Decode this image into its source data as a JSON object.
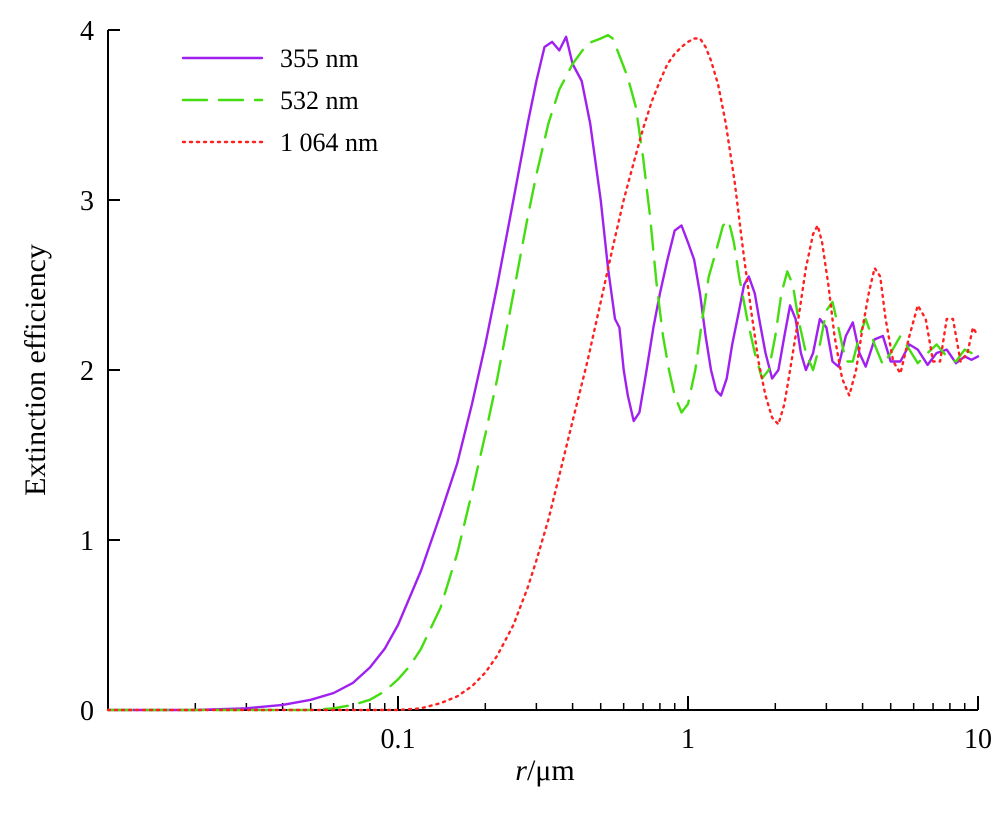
{
  "chart_data": {
    "type": "line",
    "title": "",
    "xlabel_italic": "r",
    "xlabel_rest": "/μm",
    "ylabel": "Extinction efficiency",
    "x_scale": "log",
    "xlim": [
      0.01,
      10
    ],
    "ylim": [
      0,
      4
    ],
    "x_ticks": [
      0.1,
      1,
      10
    ],
    "x_tick_labels": [
      "0.1",
      "1",
      "10"
    ],
    "y_ticks": [
      0,
      1,
      2,
      3,
      4
    ],
    "y_tick_labels": [
      "0",
      "1",
      "2",
      "3",
      "4"
    ],
    "grid": false,
    "legend_position": "top-left",
    "series": [
      {
        "name": "355 nm",
        "color": "#a020f0",
        "style": "solid",
        "points": [
          [
            0.01,
            0.0
          ],
          [
            0.02,
            0.0
          ],
          [
            0.03,
            0.01
          ],
          [
            0.04,
            0.03
          ],
          [
            0.05,
            0.06
          ],
          [
            0.06,
            0.1
          ],
          [
            0.07,
            0.16
          ],
          [
            0.08,
            0.25
          ],
          [
            0.09,
            0.36
          ],
          [
            0.1,
            0.5
          ],
          [
            0.12,
            0.82
          ],
          [
            0.14,
            1.15
          ],
          [
            0.16,
            1.45
          ],
          [
            0.18,
            1.8
          ],
          [
            0.2,
            2.15
          ],
          [
            0.22,
            2.5
          ],
          [
            0.25,
            3.0
          ],
          [
            0.28,
            3.45
          ],
          [
            0.3,
            3.7
          ],
          [
            0.32,
            3.9
          ],
          [
            0.34,
            3.93
          ],
          [
            0.36,
            3.88
          ],
          [
            0.38,
            3.96
          ],
          [
            0.4,
            3.8
          ],
          [
            0.43,
            3.7
          ],
          [
            0.46,
            3.45
          ],
          [
            0.5,
            3.0
          ],
          [
            0.53,
            2.6
          ],
          [
            0.56,
            2.3
          ],
          [
            0.58,
            2.25
          ],
          [
            0.6,
            2.0
          ],
          [
            0.62,
            1.85
          ],
          [
            0.65,
            1.7
          ],
          [
            0.68,
            1.75
          ],
          [
            0.72,
            2.0
          ],
          [
            0.76,
            2.25
          ],
          [
            0.8,
            2.45
          ],
          [
            0.85,
            2.65
          ],
          [
            0.9,
            2.82
          ],
          [
            0.95,
            2.85
          ],
          [
            1.0,
            2.75
          ],
          [
            1.05,
            2.65
          ],
          [
            1.1,
            2.45
          ],
          [
            1.15,
            2.2
          ],
          [
            1.2,
            2.0
          ],
          [
            1.25,
            1.88
          ],
          [
            1.3,
            1.85
          ],
          [
            1.36,
            1.95
          ],
          [
            1.42,
            2.15
          ],
          [
            1.5,
            2.35
          ],
          [
            1.56,
            2.5
          ],
          [
            1.62,
            2.55
          ],
          [
            1.7,
            2.45
          ],
          [
            1.76,
            2.3
          ],
          [
            1.85,
            2.1
          ],
          [
            1.95,
            1.95
          ],
          [
            2.05,
            2.0
          ],
          [
            2.15,
            2.2
          ],
          [
            2.25,
            2.38
          ],
          [
            2.35,
            2.3
          ],
          [
            2.45,
            2.1
          ],
          [
            2.55,
            2.0
          ],
          [
            2.7,
            2.1
          ],
          [
            2.85,
            2.3
          ],
          [
            3.0,
            2.25
          ],
          [
            3.15,
            2.05
          ],
          [
            3.3,
            2.02
          ],
          [
            3.5,
            2.2
          ],
          [
            3.7,
            2.28
          ],
          [
            3.9,
            2.1
          ],
          [
            4.1,
            2.02
          ],
          [
            4.4,
            2.18
          ],
          [
            4.7,
            2.2
          ],
          [
            5.0,
            2.05
          ],
          [
            5.4,
            2.05
          ],
          [
            5.8,
            2.15
          ],
          [
            6.2,
            2.12
          ],
          [
            6.7,
            2.03
          ],
          [
            7.2,
            2.1
          ],
          [
            7.8,
            2.12
          ],
          [
            8.4,
            2.04
          ],
          [
            9.0,
            2.08
          ],
          [
            9.5,
            2.06
          ],
          [
            10.0,
            2.08
          ]
        ]
      },
      {
        "name": "532 nm",
        "color": "#44dd10",
        "style": "dashed",
        "points": [
          [
            0.01,
            0.0
          ],
          [
            0.03,
            0.0
          ],
          [
            0.05,
            0.0
          ],
          [
            0.06,
            0.01
          ],
          [
            0.07,
            0.03
          ],
          [
            0.08,
            0.06
          ],
          [
            0.09,
            0.11
          ],
          [
            0.1,
            0.18
          ],
          [
            0.11,
            0.26
          ],
          [
            0.12,
            0.36
          ],
          [
            0.14,
            0.6
          ],
          [
            0.16,
            0.92
          ],
          [
            0.18,
            1.28
          ],
          [
            0.2,
            1.62
          ],
          [
            0.22,
            1.95
          ],
          [
            0.25,
            2.45
          ],
          [
            0.28,
            2.9
          ],
          [
            0.3,
            3.15
          ],
          [
            0.33,
            3.45
          ],
          [
            0.36,
            3.65
          ],
          [
            0.4,
            3.8
          ],
          [
            0.45,
            3.92
          ],
          [
            0.5,
            3.95
          ],
          [
            0.53,
            3.97
          ],
          [
            0.55,
            3.95
          ],
          [
            0.58,
            3.85
          ],
          [
            0.62,
            3.72
          ],
          [
            0.66,
            3.55
          ],
          [
            0.7,
            3.25
          ],
          [
            0.74,
            2.9
          ],
          [
            0.78,
            2.5
          ],
          [
            0.82,
            2.2
          ],
          [
            0.86,
            2.0
          ],
          [
            0.9,
            1.85
          ],
          [
            0.95,
            1.75
          ],
          [
            1.0,
            1.8
          ],
          [
            1.06,
            2.0
          ],
          [
            1.12,
            2.3
          ],
          [
            1.18,
            2.55
          ],
          [
            1.25,
            2.7
          ],
          [
            1.32,
            2.85
          ],
          [
            1.38,
            2.88
          ],
          [
            1.44,
            2.75
          ],
          [
            1.5,
            2.55
          ],
          [
            1.6,
            2.3
          ],
          [
            1.7,
            2.1
          ],
          [
            1.8,
            1.95
          ],
          [
            1.9,
            2.0
          ],
          [
            2.0,
            2.2
          ],
          [
            2.1,
            2.45
          ],
          [
            2.2,
            2.58
          ],
          [
            2.3,
            2.5
          ],
          [
            2.4,
            2.3
          ],
          [
            2.55,
            2.1
          ],
          [
            2.7,
            2.0
          ],
          [
            2.85,
            2.15
          ],
          [
            3.0,
            2.35
          ],
          [
            3.15,
            2.4
          ],
          [
            3.3,
            2.25
          ],
          [
            3.5,
            2.05
          ],
          [
            3.7,
            2.05
          ],
          [
            3.9,
            2.2
          ],
          [
            4.1,
            2.3
          ],
          [
            4.4,
            2.15
          ],
          [
            4.7,
            2.03
          ],
          [
            5.0,
            2.1
          ],
          [
            5.4,
            2.2
          ],
          [
            5.8,
            2.12
          ],
          [
            6.2,
            2.04
          ],
          [
            6.7,
            2.1
          ],
          [
            7.2,
            2.15
          ],
          [
            7.8,
            2.08
          ],
          [
            8.4,
            2.05
          ],
          [
            9.0,
            2.12
          ],
          [
            9.5,
            2.1
          ],
          [
            10.0,
            2.06
          ]
        ]
      },
      {
        "name": "1 064 nm",
        "color": "#ff2020",
        "style": "dotted",
        "points": [
          [
            0.01,
            0.0
          ],
          [
            0.05,
            0.0
          ],
          [
            0.1,
            0.0
          ],
          [
            0.12,
            0.01
          ],
          [
            0.14,
            0.04
          ],
          [
            0.16,
            0.08
          ],
          [
            0.18,
            0.14
          ],
          [
            0.2,
            0.22
          ],
          [
            0.22,
            0.32
          ],
          [
            0.25,
            0.5
          ],
          [
            0.28,
            0.72
          ],
          [
            0.3,
            0.88
          ],
          [
            0.33,
            1.12
          ],
          [
            0.36,
            1.38
          ],
          [
            0.4,
            1.7
          ],
          [
            0.45,
            2.05
          ],
          [
            0.5,
            2.4
          ],
          [
            0.55,
            2.72
          ],
          [
            0.6,
            3.0
          ],
          [
            0.65,
            3.22
          ],
          [
            0.7,
            3.42
          ],
          [
            0.75,
            3.58
          ],
          [
            0.8,
            3.7
          ],
          [
            0.85,
            3.8
          ],
          [
            0.9,
            3.86
          ],
          [
            0.95,
            3.9
          ],
          [
            1.0,
            3.93
          ],
          [
            1.05,
            3.95
          ],
          [
            1.1,
            3.95
          ],
          [
            1.15,
            3.9
          ],
          [
            1.2,
            3.82
          ],
          [
            1.27,
            3.68
          ],
          [
            1.35,
            3.45
          ],
          [
            1.45,
            3.1
          ],
          [
            1.55,
            2.7
          ],
          [
            1.65,
            2.35
          ],
          [
            1.75,
            2.05
          ],
          [
            1.85,
            1.85
          ],
          [
            1.95,
            1.72
          ],
          [
            2.05,
            1.68
          ],
          [
            2.15,
            1.8
          ],
          [
            2.25,
            2.0
          ],
          [
            2.4,
            2.3
          ],
          [
            2.55,
            2.6
          ],
          [
            2.7,
            2.8
          ],
          [
            2.8,
            2.85
          ],
          [
            2.9,
            2.75
          ],
          [
            3.05,
            2.5
          ],
          [
            3.2,
            2.2
          ],
          [
            3.4,
            1.95
          ],
          [
            3.6,
            1.85
          ],
          [
            3.8,
            2.0
          ],
          [
            4.0,
            2.25
          ],
          [
            4.2,
            2.45
          ],
          [
            4.4,
            2.6
          ],
          [
            4.6,
            2.55
          ],
          [
            4.8,
            2.3
          ],
          [
            5.1,
            2.05
          ],
          [
            5.4,
            1.98
          ],
          [
            5.8,
            2.2
          ],
          [
            6.2,
            2.38
          ],
          [
            6.6,
            2.3
          ],
          [
            7.0,
            2.05
          ],
          [
            7.4,
            2.05
          ],
          [
            7.8,
            2.3
          ],
          [
            8.2,
            2.3
          ],
          [
            8.7,
            2.05
          ],
          [
            9.2,
            2.1
          ],
          [
            9.6,
            2.25
          ],
          [
            10.0,
            2.2
          ]
        ]
      }
    ]
  }
}
